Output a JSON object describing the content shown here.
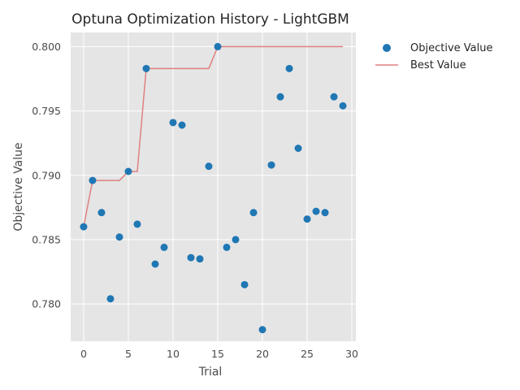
{
  "chart_data": {
    "type": "scatter",
    "title": "Optuna Optimization History - LightGBM",
    "xlabel": "Trial",
    "ylabel": "Objective Value",
    "xlim": [
      -1.45,
      30.45
    ],
    "ylim": [
      0.7771,
      0.8011
    ],
    "xticks": [
      0,
      5,
      10,
      15,
      20,
      25,
      30
    ],
    "yticks": [
      0.78,
      0.785,
      0.79,
      0.795,
      0.8
    ],
    "ytick_labels": [
      "0.780",
      "0.785",
      "0.790",
      "0.795",
      "0.800"
    ],
    "grid": true,
    "legend_position": "outside-top-right",
    "series": [
      {
        "name": "Objective Value",
        "kind": "scatter",
        "color": "#1f77b4",
        "x": [
          0,
          1,
          2,
          3,
          4,
          5,
          6,
          7,
          8,
          9,
          10,
          11,
          12,
          13,
          14,
          15,
          16,
          17,
          18,
          19,
          20,
          21,
          22,
          23,
          24,
          25,
          26,
          27,
          28,
          29
        ],
        "y": [
          0.786,
          0.7896,
          0.7871,
          0.7804,
          0.7852,
          0.7903,
          0.7862,
          0.7983,
          0.7831,
          0.7844,
          0.7941,
          0.7939,
          0.7836,
          0.7835,
          0.7907,
          0.8,
          0.7844,
          0.785,
          0.7815,
          0.7871,
          0.778,
          0.7908,
          0.7961,
          0.7983,
          0.7921,
          0.7866,
          0.7872,
          0.7871,
          0.7961,
          0.7954
        ]
      },
      {
        "name": "Best Value",
        "kind": "line",
        "color": "#e08080",
        "x": [
          0,
          1,
          2,
          3,
          4,
          5,
          6,
          7,
          8,
          9,
          10,
          11,
          12,
          13,
          14,
          15,
          16,
          17,
          18,
          19,
          20,
          21,
          22,
          23,
          24,
          25,
          26,
          27,
          28,
          29
        ],
        "y": [
          0.786,
          0.7896,
          0.7896,
          0.7896,
          0.7896,
          0.7903,
          0.7903,
          0.7983,
          0.7983,
          0.7983,
          0.7983,
          0.7983,
          0.7983,
          0.7983,
          0.7983,
          0.8,
          0.8,
          0.8,
          0.8,
          0.8,
          0.8,
          0.8,
          0.8,
          0.8,
          0.8,
          0.8,
          0.8,
          0.8,
          0.8,
          0.8
        ]
      }
    ]
  }
}
